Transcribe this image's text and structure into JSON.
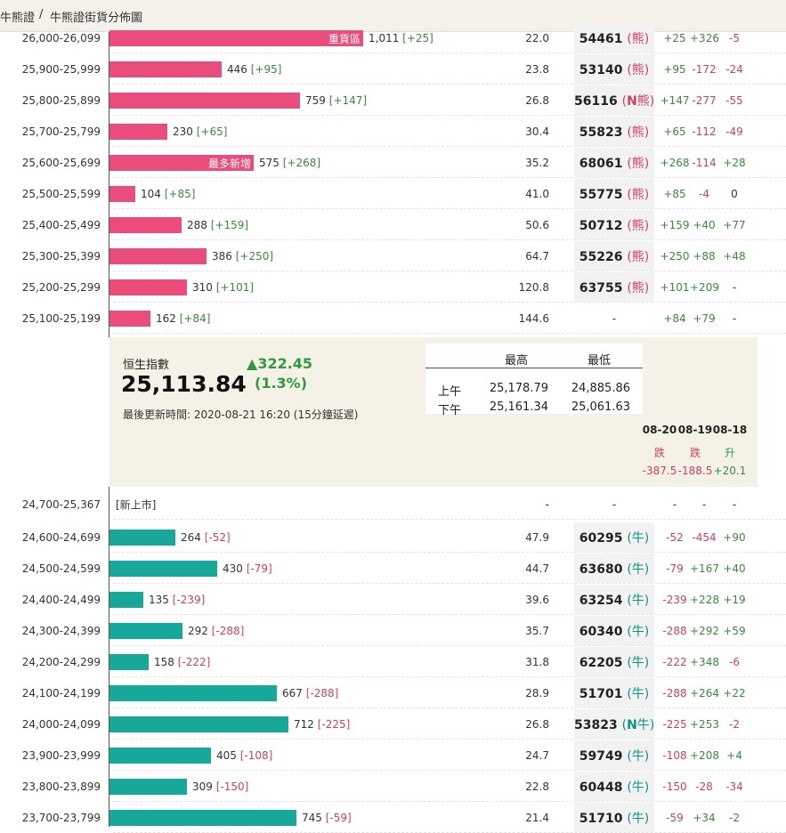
{
  "breadcrumb": {
    "part1": "牛熊證",
    "sep": "/",
    "part2": "牛熊證街貨分佈圖"
  },
  "bear_rows": [
    {
      "range": "26,000-26,099",
      "count": "1,011",
      "delta": "[+25]",
      "bar_pct": 100,
      "tag": "重貨區",
      "ratio": "22.0",
      "code": "54461",
      "n": false,
      "type": "熊",
      "d1": "+25",
      "d2": "+326",
      "d3": "-5"
    },
    {
      "range": "25,900-25,999",
      "count": "446",
      "delta": "[+95]",
      "bar_pct": 44.1,
      "tag": "",
      "ratio": "23.8",
      "code": "53140",
      "n": false,
      "type": "熊",
      "d1": "+95",
      "d2": "-172",
      "d3": "-24"
    },
    {
      "range": "25,800-25,899",
      "count": "759",
      "delta": "[+147]",
      "bar_pct": 75.1,
      "tag": "",
      "ratio": "26.8",
      "code": "56116",
      "n": true,
      "type": "熊",
      "d1": "+147",
      "d2": "-277",
      "d3": "-55"
    },
    {
      "range": "25,700-25,799",
      "count": "230",
      "delta": "[+65]",
      "bar_pct": 22.7,
      "tag": "",
      "ratio": "30.4",
      "code": "55823",
      "n": false,
      "type": "熊",
      "d1": "+65",
      "d2": "-112",
      "d3": "-49"
    },
    {
      "range": "25,600-25,699",
      "count": "575",
      "delta": "[+268]",
      "bar_pct": 56.9,
      "tag": "最多新增",
      "ratio": "35.2",
      "code": "68061",
      "n": false,
      "type": "熊",
      "d1": "+268",
      "d2": "-114",
      "d3": "+28"
    },
    {
      "range": "25,500-25,599",
      "count": "104",
      "delta": "[+85]",
      "bar_pct": 10.3,
      "tag": "",
      "ratio": "41.0",
      "code": "55775",
      "n": false,
      "type": "熊",
      "d1": "+85",
      "d2": "-4",
      "d3": "0"
    },
    {
      "range": "25,400-25,499",
      "count": "288",
      "delta": "[+159]",
      "bar_pct": 28.5,
      "tag": "",
      "ratio": "50.6",
      "code": "50712",
      "n": false,
      "type": "熊",
      "d1": "+159",
      "d2": "+40",
      "d3": "+77"
    },
    {
      "range": "25,300-25,399",
      "count": "386",
      "delta": "[+250]",
      "bar_pct": 38.2,
      "tag": "",
      "ratio": "64.7",
      "code": "55226",
      "n": false,
      "type": "熊",
      "d1": "+250",
      "d2": "+88",
      "d3": "+48"
    },
    {
      "range": "25,200-25,299",
      "count": "310",
      "delta": "[+101]",
      "bar_pct": 30.7,
      "tag": "",
      "ratio": "120.8",
      "code": "63755",
      "n": false,
      "type": "熊",
      "d1": "+101",
      "d2": "+209",
      "d3": "-"
    },
    {
      "range": "25,100-25,199",
      "count": "162",
      "delta": "[+84]",
      "bar_pct": 16.0,
      "tag": "",
      "ratio": "144.6",
      "code": "-",
      "n": false,
      "type": "",
      "d1": "+84",
      "d2": "+79",
      "d3": "-"
    }
  ],
  "index": {
    "label": "恒生指數",
    "value": "25,113.84",
    "change_arrow": "▲",
    "change": "322.45",
    "pct": "(1.3%)",
    "updated": "最後更新時間: 2020-08-21 16:20 (15分鐘延遲)",
    "hl_headers": {
      "high": "最高",
      "low": "最低"
    },
    "hl_rows": [
      {
        "label": "上午",
        "high": "25,178.79",
        "low": "24,885.86"
      },
      {
        "label": "下午",
        "high": "25,161.34",
        "low": "25,061.63"
      }
    ],
    "days": [
      {
        "date": "08-20",
        "dir": "跌",
        "change": "-387.5"
      },
      {
        "date": "08-19",
        "dir": "跌",
        "change": "-188.5"
      },
      {
        "date": "08-18",
        "dir": "升",
        "change": "+20.1"
      }
    ]
  },
  "new_row": {
    "range": "24,700-25,367",
    "tag": "[新上市]",
    "ratio": "-",
    "code": "-",
    "d1": "-",
    "d2": "-",
    "d3": "-"
  },
  "bull_rows": [
    {
      "range": "24,600-24,699",
      "count": "264",
      "delta": "[-52]",
      "bar_pct": 26.1,
      "ratio": "47.9",
      "code": "60295",
      "n": false,
      "type": "牛",
      "d1": "-52",
      "d2": "-454",
      "d3": "+90"
    },
    {
      "range": "24,500-24,599",
      "count": "430",
      "delta": "[-79]",
      "bar_pct": 42.5,
      "ratio": "44.7",
      "code": "63680",
      "n": false,
      "type": "牛",
      "d1": "-79",
      "d2": "+167",
      "d3": "+40"
    },
    {
      "range": "24,400-24,499",
      "count": "135",
      "delta": "[-239]",
      "bar_pct": 13.4,
      "ratio": "39.6",
      "code": "63254",
      "n": false,
      "type": "牛",
      "d1": "-239",
      "d2": "+228",
      "d3": "+19"
    },
    {
      "range": "24,300-24,399",
      "count": "292",
      "delta": "[-288]",
      "bar_pct": 28.9,
      "ratio": "35.7",
      "code": "60340",
      "n": false,
      "type": "牛",
      "d1": "-288",
      "d2": "+292",
      "d3": "+59"
    },
    {
      "range": "24,200-24,299",
      "count": "158",
      "delta": "[-222]",
      "bar_pct": 15.6,
      "ratio": "31.8",
      "code": "62205",
      "n": false,
      "type": "牛",
      "d1": "-222",
      "d2": "+348",
      "d3": "-6"
    },
    {
      "range": "24,100-24,199",
      "count": "667",
      "delta": "[-288]",
      "bar_pct": 66.0,
      "ratio": "28.9",
      "code": "51701",
      "n": false,
      "type": "牛",
      "d1": "-288",
      "d2": "+264",
      "d3": "+22"
    },
    {
      "range": "24,000-24,099",
      "count": "712",
      "delta": "[-225]",
      "bar_pct": 70.4,
      "ratio": "26.8",
      "code": "53823",
      "n": true,
      "type": "牛",
      "d1": "-225",
      "d2": "+253",
      "d3": "-2"
    },
    {
      "range": "23,900-23,999",
      "count": "405",
      "delta": "[-108]",
      "bar_pct": 40.1,
      "ratio": "24.7",
      "code": "59749",
      "n": false,
      "type": "牛",
      "d1": "-108",
      "d2": "+208",
      "d3": "+4"
    },
    {
      "range": "23,800-23,899",
      "count": "309",
      "delta": "[-150]",
      "bar_pct": 30.6,
      "ratio": "22.8",
      "code": "60448",
      "n": false,
      "type": "牛",
      "d1": "-150",
      "d2": "-28",
      "d3": "-34"
    },
    {
      "range": "23,700-23,799",
      "count": "745",
      "delta": "[-59]",
      "bar_pct": 73.7,
      "ratio": "21.4",
      "code": "51710",
      "n": false,
      "type": "牛",
      "d1": "-59",
      "d2": "+34",
      "d3": "-2"
    }
  ],
  "colors": {
    "bear": "#ea4c7b",
    "bull": "#17a89a",
    "up": "#2f9a3f",
    "down": "#d23f61",
    "panel": "#f4f2e6"
  }
}
